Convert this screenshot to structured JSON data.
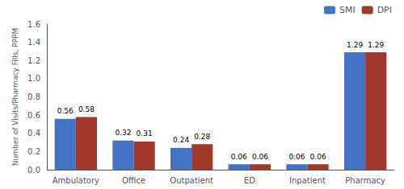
{
  "chart_data": {
    "type": "bar",
    "ylabel": "Number of Visits/Pharmacy Fills, PPPM",
    "categories": [
      "Ambulatory",
      "Office",
      "Outpatient",
      "ED",
      "Inpatient",
      "Pharmacy"
    ],
    "series": [
      {
        "name": "SMI",
        "color": "#4472C4",
        "values": [
          0.56,
          0.32,
          0.24,
          0.06,
          0.06,
          1.29
        ]
      },
      {
        "name": "DPI",
        "color": "#A0392B",
        "values": [
          0.58,
          0.31,
          0.28,
          0.06,
          0.06,
          1.29
        ]
      }
    ],
    "ylim": [
      0,
      1.6
    ],
    "yticks": [
      {
        "value": 0,
        "label": "0.0"
      },
      0.2,
      0.4,
      0.6,
      0.8,
      {
        "value": 1,
        "label": "1.0"
      },
      1.2,
      1.4,
      1.6
    ],
    "data_labels": true,
    "legend": "upper right",
    "grid": false
  }
}
